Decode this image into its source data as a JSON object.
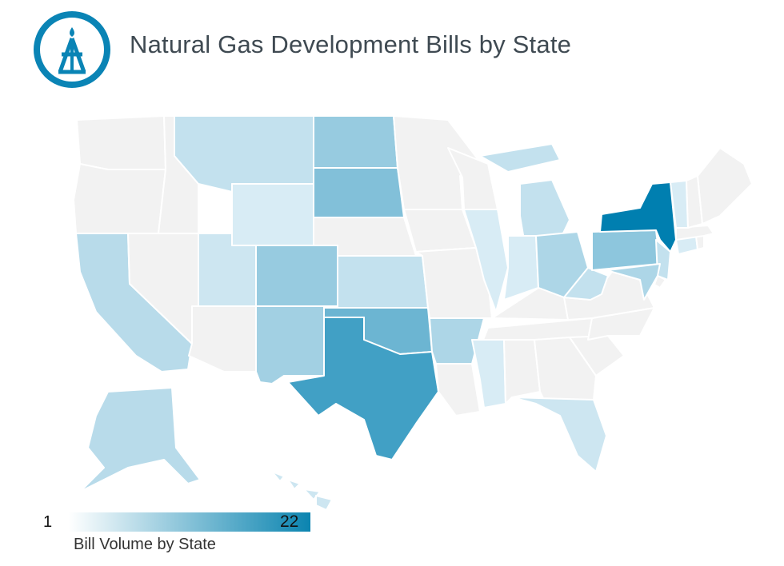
{
  "title": "Natural Gas Development Bills by State",
  "logo": {
    "icon": "gas-rig-icon",
    "color": "#0a84b5"
  },
  "legend": {
    "min_label": "1",
    "max_label": "22",
    "caption": "Bill Volume by State",
    "color_low": "#ffffff",
    "color_high": "#0b84b0"
  },
  "chart_data": {
    "type": "choropleth",
    "scale": [
      1,
      22
    ],
    "no_data_color": "#f2f2f2",
    "states": [
      {
        "id": "NY",
        "value": 22
      },
      {
        "id": "TX",
        "value": 16
      },
      {
        "id": "OK",
        "value": 12
      },
      {
        "id": "SD",
        "value": 10
      },
      {
        "id": "ND",
        "value": 8
      },
      {
        "id": "PA",
        "value": 9
      },
      {
        "id": "CO",
        "value": 8
      },
      {
        "id": "NM",
        "value": 7
      },
      {
        "id": "AR",
        "value": 6
      },
      {
        "id": "OH",
        "value": 6
      },
      {
        "id": "MD",
        "value": 6
      },
      {
        "id": "CA",
        "value": 5
      },
      {
        "id": "MT",
        "value": 4
      },
      {
        "id": "AK",
        "value": 5
      },
      {
        "id": "MI",
        "value": 4
      },
      {
        "id": "WV",
        "value": 4
      },
      {
        "id": "NJ",
        "value": 4
      },
      {
        "id": "KS",
        "value": 4
      },
      {
        "id": "HI",
        "value": 3
      },
      {
        "id": "FL",
        "value": 3
      },
      {
        "id": "UT",
        "value": 3
      },
      {
        "id": "IN",
        "value": 2
      },
      {
        "id": "IL",
        "value": 2
      },
      {
        "id": "MS",
        "value": 2
      },
      {
        "id": "WY",
        "value": 2
      },
      {
        "id": "CT",
        "value": 2
      },
      {
        "id": "VT",
        "value": 2
      }
    ]
  }
}
